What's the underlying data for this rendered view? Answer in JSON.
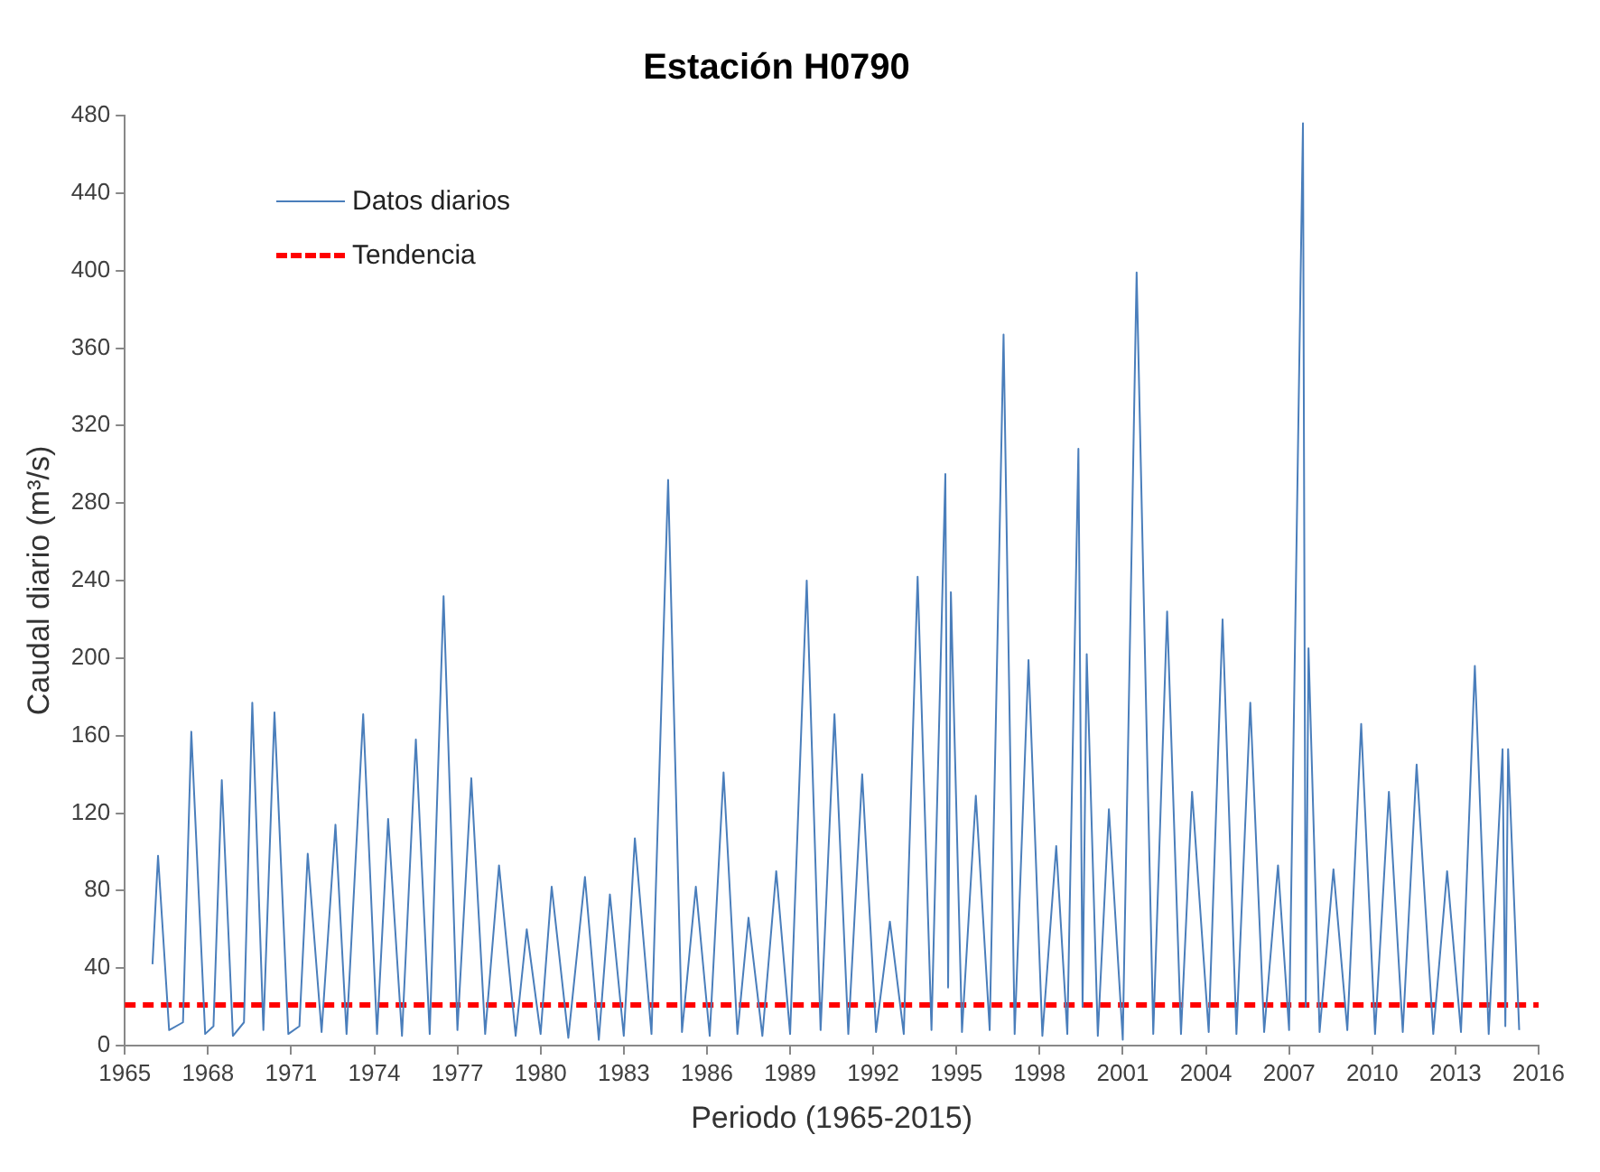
{
  "chart_data": {
    "type": "line",
    "title": "Estación H0790",
    "xlabel": "Periodo (1965-2015)",
    "ylabel": "Caudal diario (m³/s)",
    "xlim": [
      1965,
      2016
    ],
    "xticks": [
      1965,
      1968,
      1971,
      1974,
      1977,
      1980,
      1983,
      1986,
      1989,
      1992,
      1995,
      1998,
      2001,
      2004,
      2007,
      2010,
      2013,
      2016
    ],
    "ylim": [
      0,
      480
    ],
    "yticks": [
      0,
      40,
      80,
      120,
      160,
      200,
      240,
      280,
      320,
      360,
      400,
      440,
      480
    ],
    "legend": "top left",
    "marker": "none",
    "series": [
      {
        "name": "Datos diarios",
        "color": "#4a7ebb",
        "line_style": "solid",
        "x": [
          1966.0,
          1966.2,
          1966.6,
          1967.1,
          1967.4,
          1967.9,
          1968.2,
          1968.5,
          1968.9,
          1969.3,
          1969.6,
          1970.0,
          1970.4,
          1970.9,
          1971.3,
          1971.6,
          1972.1,
          1972.6,
          1973.0,
          1973.6,
          1974.1,
          1974.5,
          1975.0,
          1975.5,
          1976.0,
          1976.5,
          1977.0,
          1977.5,
          1978.0,
          1978.5,
          1979.1,
          1979.5,
          1980.0,
          1980.4,
          1981.0,
          1981.6,
          1982.1,
          1982.5,
          1983.0,
          1983.4,
          1984.0,
          1984.6,
          1985.1,
          1985.6,
          1986.1,
          1986.6,
          1987.1,
          1987.5,
          1988.0,
          1988.5,
          1989.0,
          1989.6,
          1990.1,
          1990.6,
          1991.1,
          1991.6,
          1992.1,
          1992.6,
          1993.1,
          1993.6,
          1994.1,
          1994.6,
          1994.7,
          1994.8,
          1995.2,
          1995.7,
          1996.2,
          1996.7,
          1997.1,
          1997.6,
          1998.1,
          1998.6,
          1999.0,
          1999.4,
          1999.55,
          1999.7,
          2000.1,
          2000.5,
          2001.0,
          2001.5,
          2002.1,
          2002.6,
          2003.1,
          2003.5,
          2004.1,
          2004.6,
          2005.1,
          2005.6,
          2006.1,
          2006.6,
          2007.0,
          2007.5,
          2007.6,
          2007.7,
          2008.1,
          2008.6,
          2009.1,
          2009.6,
          2010.1,
          2010.6,
          2011.1,
          2011.6,
          2012.2,
          2012.7,
          2013.2,
          2013.7,
          2014.2,
          2014.7,
          2014.8,
          2014.9,
          2015.3
        ],
        "values": [
          42,
          98,
          8,
          12,
          162,
          6,
          10,
          137,
          5,
          12,
          177,
          8,
          172,
          6,
          10,
          99,
          7,
          114,
          6,
          171,
          6,
          117,
          5,
          158,
          6,
          232,
          8,
          138,
          6,
          93,
          5,
          60,
          6,
          82,
          4,
          87,
          3,
          78,
          5,
          107,
          6,
          292,
          7,
          82,
          5,
          141,
          6,
          66,
          5,
          90,
          6,
          240,
          8,
          171,
          6,
          140,
          7,
          64,
          6,
          242,
          8,
          295,
          30,
          234,
          7,
          129,
          8,
          367,
          6,
          199,
          5,
          103,
          6,
          308,
          20,
          202,
          5,
          122,
          3,
          399,
          6,
          224,
          6,
          131,
          7,
          220,
          6,
          177,
          7,
          93,
          8,
          476,
          20,
          205,
          7,
          91,
          8,
          166,
          6,
          131,
          7,
          145,
          6,
          90,
          7,
          196,
          6,
          153,
          10,
          153,
          8
        ]
      },
      {
        "name": "Tendencia",
        "color": "#ff0000",
        "line_style": "dashed",
        "x": [
          1965,
          2016
        ],
        "values": [
          21,
          21
        ]
      }
    ]
  }
}
